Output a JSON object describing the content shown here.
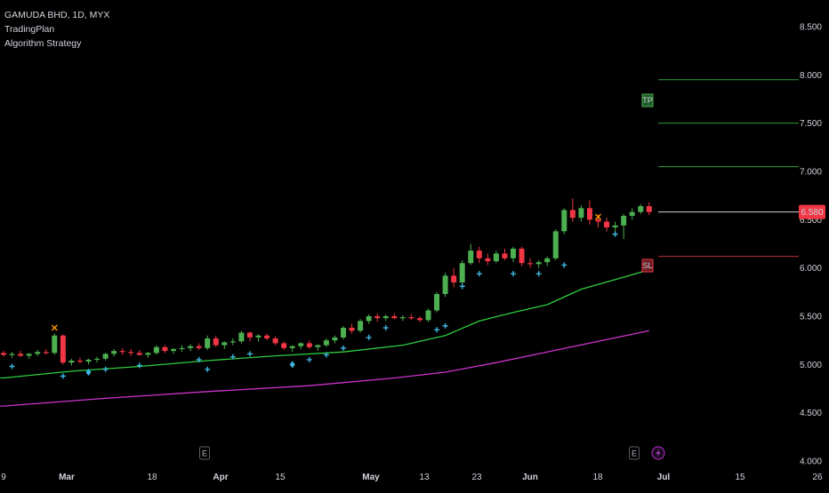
{
  "legend": {
    "symbol_line": "GAMUDA BHD, 1D, MYX",
    "indicator_1": "TradingPlan",
    "indicator_2": "Algorithm Strategy"
  },
  "colors": {
    "background": "#000000",
    "up": "#4caf50",
    "down": "#f23645",
    "ma_fast": "#2ecc40",
    "ma_slow": "#cc33cc",
    "signal_plus": "#3fb7e0",
    "signal_x": "#ff9800",
    "tp_line": "#2e9d3a",
    "sl_line": "#c0303a",
    "price_line": "#d1d4dc"
  },
  "price_label": "6.580",
  "badges": {
    "tp": "TP",
    "sl": "SL"
  },
  "events": {
    "earnings_label": "E",
    "lightning_icon": "lightning-icon"
  },
  "chart_data": {
    "type": "candlestick",
    "title": "GAMUDA BHD, 1D, MYX",
    "y_axis": {
      "ticks": [
        "8.500",
        "8.000",
        "7.500",
        "7.000",
        "6.500",
        "6.000",
        "5.500",
        "5.000",
        "4.500",
        "4.000"
      ],
      "range": [
        4.0,
        8.5
      ]
    },
    "x_axis": {
      "ticks": [
        {
          "label": "9",
          "bold": false
        },
        {
          "label": "Mar",
          "bold": true
        },
        {
          "label": "18",
          "bold": false
        },
        {
          "label": "Apr",
          "bold": true
        },
        {
          "label": "15",
          "bold": false
        },
        {
          "label": "May",
          "bold": true
        },
        {
          "label": "13",
          "bold": false
        },
        {
          "label": "23",
          "bold": false
        },
        {
          "label": "Jun",
          "bold": true
        },
        {
          "label": "18",
          "bold": false
        },
        {
          "label": "Jul",
          "bold": true
        },
        {
          "label": "15",
          "bold": false
        },
        {
          "label": "26",
          "bold": false
        }
      ]
    },
    "candles": [
      [
        5.12,
        5.14,
        5.08,
        5.1
      ],
      [
        5.1,
        5.13,
        5.07,
        5.11
      ],
      [
        5.11,
        5.14,
        5.08,
        5.09
      ],
      [
        5.09,
        5.12,
        5.06,
        5.11
      ],
      [
        5.11,
        5.15,
        5.09,
        5.13
      ],
      [
        5.13,
        5.16,
        5.1,
        5.12
      ],
      [
        5.12,
        5.32,
        5.1,
        5.3
      ],
      [
        5.3,
        5.31,
        5.0,
        5.02
      ],
      [
        5.02,
        5.06,
        4.99,
        5.04
      ],
      [
        5.04,
        5.07,
        5.01,
        5.03
      ],
      [
        5.03,
        5.06,
        5.0,
        5.05
      ],
      [
        5.05,
        5.08,
        5.02,
        5.06
      ],
      [
        5.06,
        5.12,
        5.04,
        5.11
      ],
      [
        5.11,
        5.16,
        5.08,
        5.14
      ],
      [
        5.14,
        5.17,
        5.1,
        5.13
      ],
      [
        5.13,
        5.16,
        5.09,
        5.12
      ],
      [
        5.12,
        5.15,
        5.09,
        5.1
      ],
      [
        5.1,
        5.13,
        5.07,
        5.12
      ],
      [
        5.12,
        5.2,
        5.1,
        5.18
      ],
      [
        5.18,
        5.2,
        5.12,
        5.14
      ],
      [
        5.14,
        5.17,
        5.11,
        5.16
      ],
      [
        5.16,
        5.2,
        5.13,
        5.17
      ],
      [
        5.17,
        5.21,
        5.14,
        5.19
      ],
      [
        5.19,
        5.22,
        5.15,
        5.17
      ],
      [
        5.17,
        5.3,
        5.15,
        5.27
      ],
      [
        5.27,
        5.3,
        5.18,
        5.2
      ],
      [
        5.2,
        5.24,
        5.16,
        5.23
      ],
      [
        5.23,
        5.27,
        5.2,
        5.24
      ],
      [
        5.24,
        5.35,
        5.22,
        5.33
      ],
      [
        5.33,
        5.34,
        5.24,
        5.28
      ],
      [
        5.28,
        5.31,
        5.24,
        5.3
      ],
      [
        5.3,
        5.32,
        5.25,
        5.27
      ],
      [
        5.27,
        5.29,
        5.2,
        5.22
      ],
      [
        5.22,
        5.24,
        5.15,
        5.17
      ],
      [
        5.17,
        5.2,
        5.13,
        5.19
      ],
      [
        5.19,
        5.23,
        5.16,
        5.22
      ],
      [
        5.22,
        5.25,
        5.16,
        5.18
      ],
      [
        5.18,
        5.21,
        5.14,
        5.2
      ],
      [
        5.2,
        5.27,
        5.18,
        5.25
      ],
      [
        5.25,
        5.3,
        5.22,
        5.28
      ],
      [
        5.28,
        5.4,
        5.26,
        5.38
      ],
      [
        5.38,
        5.42,
        5.32,
        5.35
      ],
      [
        5.35,
        5.47,
        5.33,
        5.45
      ],
      [
        5.45,
        5.52,
        5.42,
        5.5
      ],
      [
        5.5,
        5.53,
        5.44,
        5.48
      ],
      [
        5.48,
        5.52,
        5.45,
        5.5
      ],
      [
        5.5,
        5.53,
        5.47,
        5.48
      ],
      [
        5.48,
        5.51,
        5.45,
        5.49
      ],
      [
        5.49,
        5.52,
        5.46,
        5.48
      ],
      [
        5.48,
        5.5,
        5.44,
        5.46
      ],
      [
        5.46,
        5.58,
        5.44,
        5.56
      ],
      [
        5.56,
        5.75,
        5.54,
        5.73
      ],
      [
        5.73,
        5.95,
        5.7,
        5.92
      ],
      [
        5.92,
        6.0,
        5.8,
        5.85
      ],
      [
        5.85,
        6.08,
        5.83,
        6.05
      ],
      [
        6.05,
        6.25,
        6.03,
        6.18
      ],
      [
        6.18,
        6.22,
        6.05,
        6.1
      ],
      [
        6.1,
        6.15,
        6.03,
        6.07
      ],
      [
        6.07,
        6.18,
        6.05,
        6.15
      ],
      [
        6.15,
        6.2,
        6.08,
        6.1
      ],
      [
        6.1,
        6.22,
        6.06,
        6.2
      ],
      [
        6.2,
        6.22,
        6.02,
        6.05
      ],
      [
        6.05,
        6.1,
        6.0,
        6.04
      ],
      [
        6.04,
        6.08,
        6.0,
        6.06
      ],
      [
        6.06,
        6.12,
        6.02,
        6.1
      ],
      [
        6.1,
        6.4,
        6.08,
        6.38
      ],
      [
        6.38,
        6.62,
        6.35,
        6.6
      ],
      [
        6.6,
        6.72,
        6.48,
        6.52
      ],
      [
        6.52,
        6.65,
        6.48,
        6.62
      ],
      [
        6.62,
        6.7,
        6.45,
        6.5
      ],
      [
        6.5,
        6.55,
        6.42,
        6.48
      ],
      [
        6.48,
        6.52,
        6.38,
        6.42
      ],
      [
        6.42,
        6.48,
        6.36,
        6.44
      ],
      [
        6.44,
        6.56,
        6.3,
        6.54
      ],
      [
        6.54,
        6.62,
        6.5,
        6.58
      ],
      [
        6.58,
        6.66,
        6.56,
        6.64
      ],
      [
        6.64,
        6.68,
        6.55,
        6.58
      ]
    ],
    "ma_fast": [
      [
        0,
        4.86
      ],
      [
        8,
        4.93
      ],
      [
        16,
        4.98
      ],
      [
        24,
        5.04
      ],
      [
        32,
        5.09
      ],
      [
        40,
        5.13
      ],
      [
        47,
        5.2
      ],
      [
        52,
        5.3
      ],
      [
        56,
        5.45
      ],
      [
        60,
        5.54
      ],
      [
        64,
        5.62
      ],
      [
        68,
        5.78
      ],
      [
        72,
        5.88
      ],
      [
        76,
        5.98
      ]
    ],
    "ma_slow": [
      [
        0,
        4.57
      ],
      [
        12,
        4.65
      ],
      [
        24,
        4.72
      ],
      [
        36,
        4.78
      ],
      [
        46,
        4.86
      ],
      [
        52,
        4.92
      ],
      [
        58,
        5.02
      ],
      [
        64,
        5.13
      ],
      [
        70,
        5.24
      ],
      [
        76,
        5.35
      ]
    ],
    "signals_plus": [
      [
        1,
        4.98
      ],
      [
        7,
        4.88
      ],
      [
        12,
        4.95
      ],
      [
        16,
        4.99
      ],
      [
        23,
        5.05
      ],
      [
        24,
        4.95
      ],
      [
        27,
        5.08
      ],
      [
        29,
        5.11
      ],
      [
        36,
        5.05
      ],
      [
        38,
        5.1
      ],
      [
        40,
        5.17
      ],
      [
        43,
        5.28
      ],
      [
        45,
        5.38
      ],
      [
        51,
        5.36
      ],
      [
        52,
        5.4
      ],
      [
        54,
        5.81
      ],
      [
        56,
        5.94
      ],
      [
        60,
        5.94
      ],
      [
        63,
        5.94
      ],
      [
        66,
        6.03
      ],
      [
        72,
        6.35
      ]
    ],
    "signals_diamond": [
      [
        10,
        4.92
      ],
      [
        34,
        5.0
      ]
    ],
    "signals_x": [
      [
        6,
        5.38
      ],
      [
        70,
        6.53
      ]
    ],
    "tp_levels": [
      7.95,
      7.5,
      7.05
    ],
    "sl_level": 6.12,
    "last_price": 6.58,
    "event_markers": [
      {
        "index": 21,
        "type": "E"
      },
      {
        "index": 67,
        "type": "E"
      },
      {
        "index": 70,
        "type": "lightning"
      }
    ]
  }
}
